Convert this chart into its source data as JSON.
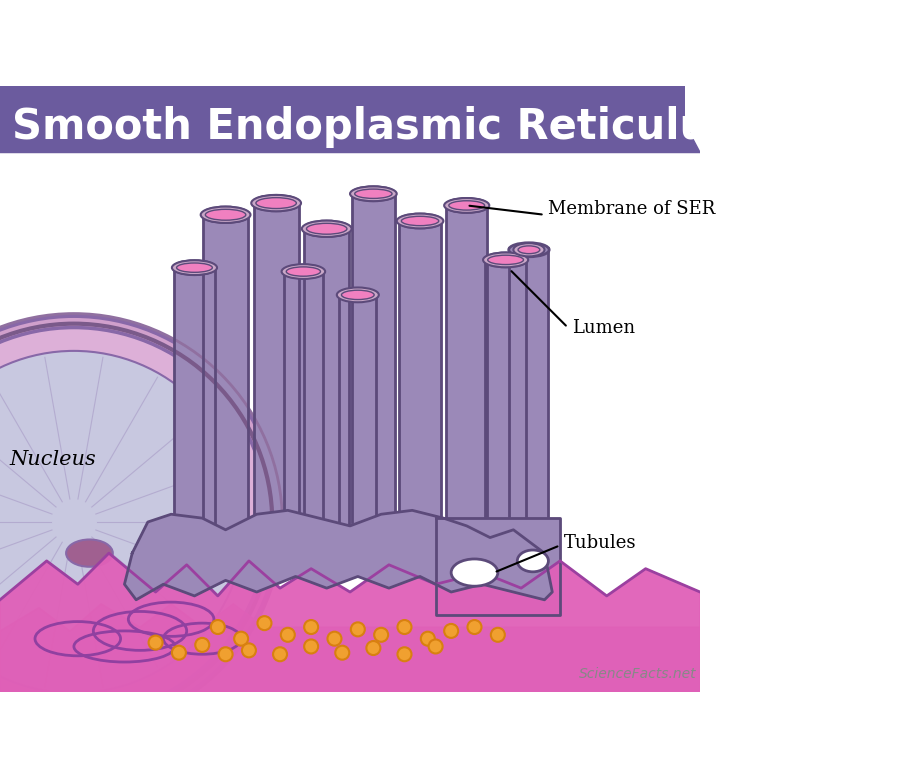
{
  "title": "Smooth Endoplasmic Reticulum (SER)",
  "title_bg_color": "#6B5B9E",
  "title_text_color": "#FFFFFF",
  "bg_color": "#FFFFFF",
  "tube_fill_color": "#9B89B8",
  "tube_outline_color": "#5C4A7A",
  "lumen_outer_color": "#C9A8C8",
  "lumen_inner_color": "#F080C0",
  "pink_base_color": "#E060B8",
  "pink_base_outline": "#9B40A0",
  "nucleus_fill": "#D8A8D0",
  "nucleus_outline": "#8868A8",
  "nucleus_inner": "#C8C8E0",
  "orange_dot_color": "#F0A030",
  "orange_dot_outline": "#D88010",
  "label_color": "#000000",
  "annotation_line_color": "#000000",
  "labels": {
    "membrane": "Membrane of SER",
    "lumen": "Lumen",
    "tubules": "Tubules",
    "nucleus": "Nucleus"
  },
  "sciencefacts_text": "ScienceFacts.net"
}
